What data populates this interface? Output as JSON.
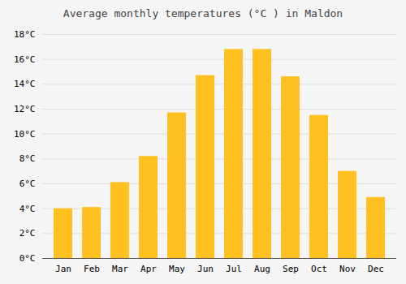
{
  "chart_data": {
    "type": "bar",
    "title": "Average monthly temperatures (°C ) in Maldon",
    "categories": [
      "Jan",
      "Feb",
      "Mar",
      "Apr",
      "May",
      "Jun",
      "Jul",
      "Aug",
      "Sep",
      "Oct",
      "Nov",
      "Dec"
    ],
    "values": [
      4.0,
      4.1,
      6.1,
      8.2,
      11.7,
      14.7,
      16.8,
      16.8,
      14.6,
      11.5,
      7.0,
      4.9
    ],
    "color": "#FFC020",
    "ylim": [
      0,
      18
    ],
    "yticks": [
      {
        "value": 0,
        "label": "0°C"
      },
      {
        "value": 2,
        "label": "2°C"
      },
      {
        "value": 4,
        "label": "4°C"
      },
      {
        "value": 6,
        "label": "6°C"
      },
      {
        "value": 8,
        "label": "8°C"
      },
      {
        "value": 10,
        "label": "10°C"
      },
      {
        "value": 12,
        "label": "12°C"
      },
      {
        "value": 14,
        "label": "14°C"
      },
      {
        "value": 16,
        "label": "16°C"
      },
      {
        "value": 18,
        "label": "18°C"
      }
    ],
    "grid": true
  }
}
